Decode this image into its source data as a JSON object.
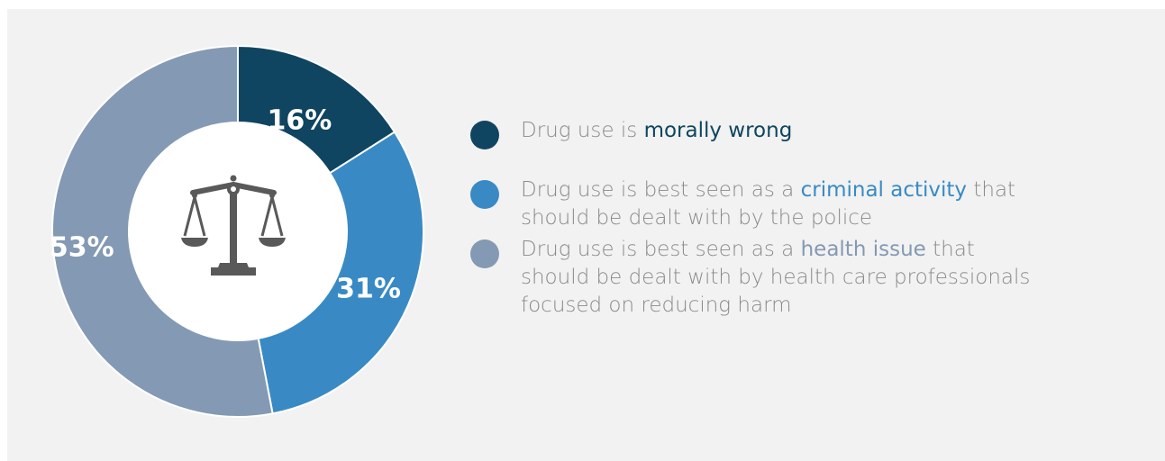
{
  "chart_data": {
    "type": "pie",
    "title": "",
    "slices": [
      {
        "label": "Drug use is morally wrong",
        "value": 16,
        "value_label": "16%",
        "color": "#0f4560",
        "text_before": "Drug use is ",
        "highlight": "morally wrong",
        "text_after": ""
      },
      {
        "label": "Drug use is best seen as a criminal activity that should be dealt with by the police",
        "value": 31,
        "value_label": "31%",
        "color": "#398ac4",
        "text_before": "Drug use is best seen as a ",
        "highlight": "criminal activity",
        "text_after": " that should be dealt with by the police"
      },
      {
        "label": "Drug use is best seen as a health issue that should be dealt with by health care professionals focused on reducing harm",
        "value": 53,
        "value_label": "53%",
        "color": "#8499b3",
        "text_before": "Drug use is best seen as a ",
        "highlight": "health issue",
        "text_after": " that should be dealt with by health care professionals focused on reducing harm"
      }
    ],
    "center_icon": "scales-of-justice-icon",
    "legend_position": "right",
    "donut": true
  }
}
